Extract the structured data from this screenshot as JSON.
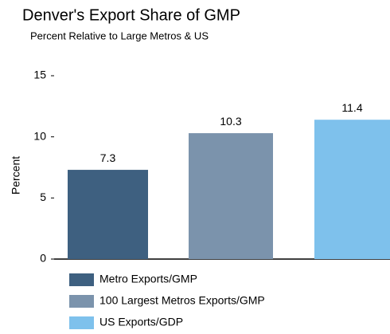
{
  "chart_data": {
    "type": "bar",
    "title": "Denver's Export Share of GMP",
    "subtitle": "Percent Relative to Large Metros & US",
    "y_label": "Percent",
    "series": [
      {
        "name": "Metro Exports/GMP",
        "color": "#3e6080",
        "values": [
          7.3
        ]
      },
      {
        "name": "100 Largest Metros Exports/GMP",
        "color": "#7b93ac",
        "values": [
          10.3
        ]
      },
      {
        "name": "US Exports/GDP",
        "color": "#7ec1ec",
        "values": [
          11.4
        ]
      }
    ],
    "ylim": [
      0,
      15
    ],
    "yticks": [
      0,
      5,
      10,
      15
    ],
    "grid": false,
    "legend": "bottom"
  }
}
